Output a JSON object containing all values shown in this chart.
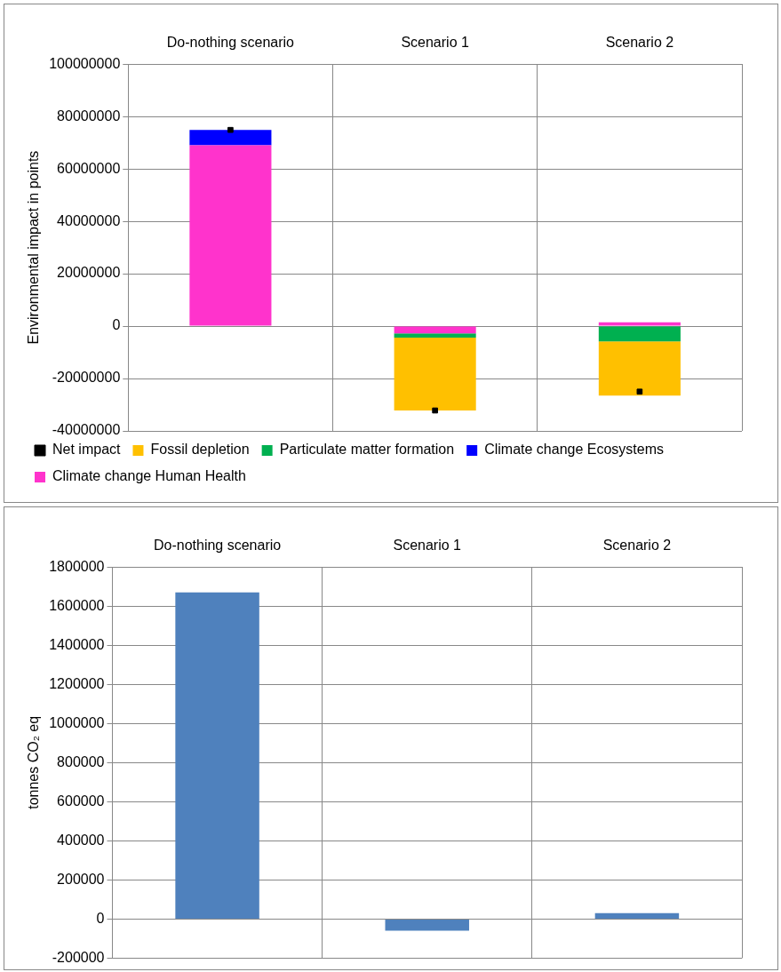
{
  "chart_data": [
    {
      "type": "bar",
      "stacked": true,
      "ylabel": "Environmental impact in points",
      "categories": [
        "Do-nothing scenario",
        "Scenario 1",
        "Scenario 2"
      ],
      "series": [
        {
          "name": "Climate change Human Health",
          "color": "#ff33cc",
          "values": [
            69000000,
            -2800000,
            1500000
          ]
        },
        {
          "name": "Climate change Ecosystems",
          "color": "#0000ff",
          "values": [
            5900000,
            null,
            null
          ]
        },
        {
          "name": "Particulate matter formation",
          "color": "#00b050",
          "values": [
            null,
            -1600000,
            -5800000
          ]
        },
        {
          "name": "Fossil depletion",
          "color": "#ffc000",
          "values": [
            null,
            -27800000,
            -20700000
          ]
        },
        {
          "name": "Net impact",
          "type": "scatter",
          "marker": "square",
          "color": "#000000",
          "x": [
            "Do-nothing scenario",
            "Scenario 1",
            "Scenario 2"
          ],
          "values": [
            74900000,
            -32200000,
            -25000000
          ]
        }
      ],
      "ylim": [
        -40000000,
        100000000
      ],
      "yticks": [
        -40000000,
        -20000000,
        0,
        20000000,
        40000000,
        60000000,
        80000000,
        100000000
      ],
      "grid": true,
      "legend": "bottom"
    },
    {
      "type": "bar",
      "ylabel": "tonnes CO₂ eq",
      "categories": [
        "Do-nothing scenario",
        "Scenario 1",
        "Scenario 2"
      ],
      "values": [
        1670000,
        -60000,
        30000
      ],
      "color": "#4f81bd",
      "ylim": [
        -200000,
        1800000
      ],
      "yticks": [
        -200000,
        0,
        200000,
        400000,
        600000,
        800000,
        1000000,
        1200000,
        1400000,
        1600000,
        1800000
      ],
      "grid": true,
      "legend": false
    }
  ]
}
